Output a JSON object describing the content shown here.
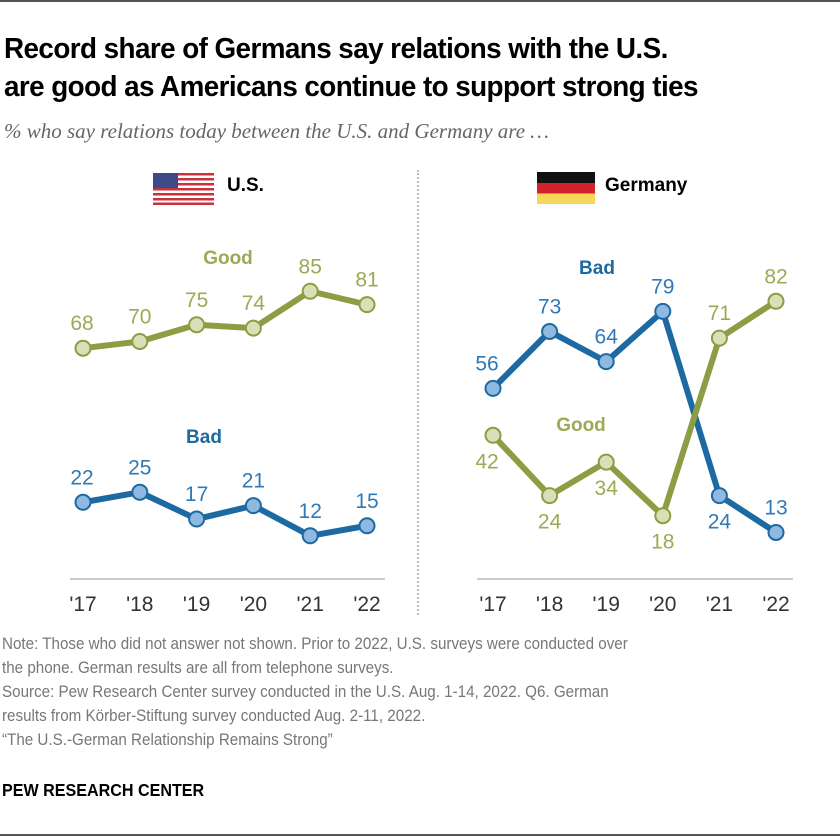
{
  "header": {
    "title_line1": "Record share of Germans say relations with the U.S.",
    "title_line2": "are good as Americans continue to support strong ties",
    "subtitle": "% who say relations today between the U.S. and Germany are …"
  },
  "colors": {
    "good_line": "#8c9d43",
    "good_marker": "#d9e0b8",
    "good_label": "#9aaa55",
    "bad_line": "#1d6aa2",
    "bad_marker": "#8fb9e0",
    "bad_label": "#2e7ab8",
    "axis": "#bbbbbb",
    "tick_text": "#333333"
  },
  "chart_data": [
    {
      "type": "line",
      "panel": "U.S.",
      "flag_icon": "us-flag-icon",
      "categories": [
        "'17",
        "'18",
        "'19",
        "'20",
        "'21",
        "'22"
      ],
      "series": [
        {
          "name": "Good",
          "values": [
            68,
            70,
            75,
            74,
            85,
            81
          ],
          "label_position": "above"
        },
        {
          "name": "Bad",
          "values": [
            22,
            25,
            17,
            21,
            12,
            15
          ],
          "label_position": "above"
        }
      ],
      "ylim": [
        0,
        100
      ],
      "grid": false,
      "xlabel": "",
      "ylabel": ""
    },
    {
      "type": "line",
      "panel": "Germany",
      "flag_icon": "germany-flag-icon",
      "categories": [
        "'17",
        "'18",
        "'19",
        "'20",
        "'21",
        "'22"
      ],
      "series": [
        {
          "name": "Bad",
          "values": [
            56,
            73,
            64,
            79,
            24,
            13
          ],
          "label_position": [
            "above",
            "above",
            "above",
            "above",
            "below",
            "above"
          ]
        },
        {
          "name": "Good",
          "values": [
            42,
            24,
            34,
            18,
            71,
            82
          ],
          "label_position": [
            "below",
            "below",
            "below",
            "below",
            "above",
            "above"
          ]
        }
      ],
      "ylim": [
        0,
        100
      ],
      "grid": false,
      "xlabel": "",
      "ylabel": ""
    }
  ],
  "footer": {
    "note_line1": "Note: Those who did not answer not shown. Prior to 2022, U.S. surveys were conducted over",
    "note_line2": "the phone. German results are all from telephone surveys.",
    "source_line1": "Source: Pew Research Center survey conducted in the U.S. Aug. 1-14, 2022. Q6. German",
    "source_line2": "results from Körber-Stiftung survey conducted Aug. 2-11, 2022.",
    "report_title": "“The U.S.-German Relationship Remains Strong”",
    "brand": "PEW RESEARCH CENTER"
  }
}
